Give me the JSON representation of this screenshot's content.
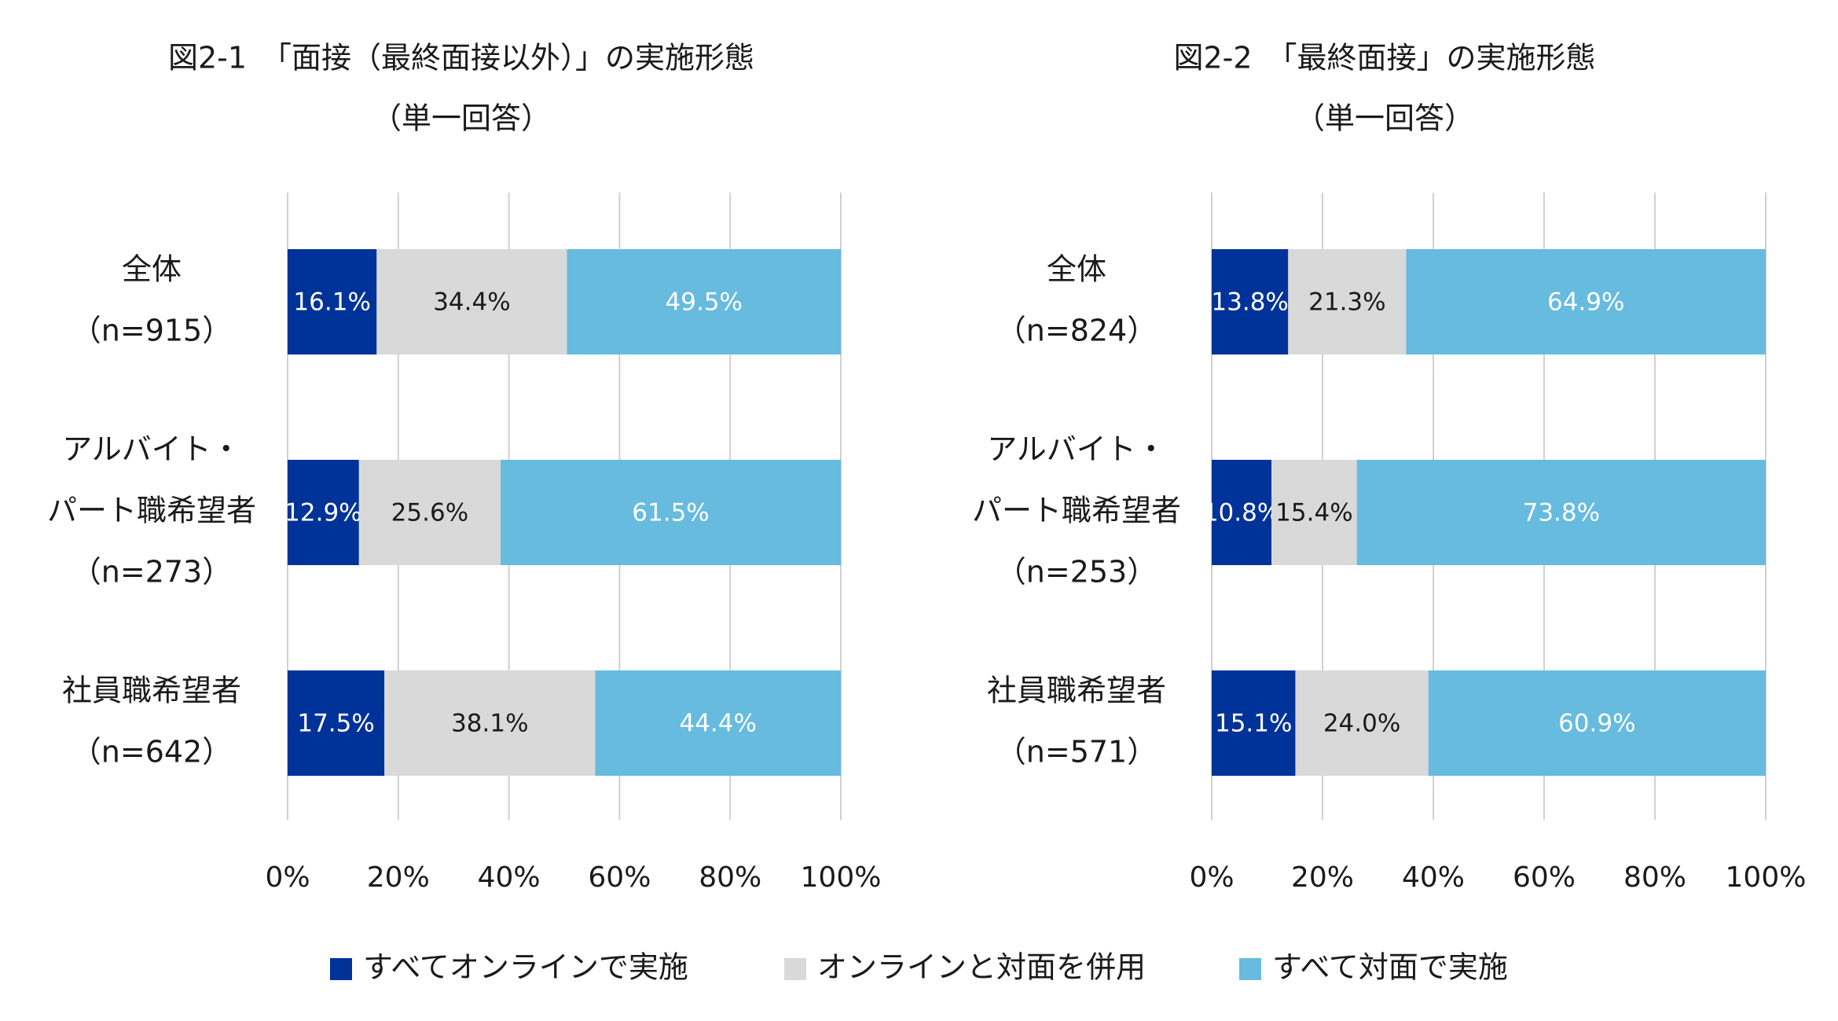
{
  "colors": {
    "online": "#003399",
    "mixed": "#d9d9d9",
    "inperson": "#66bbdf",
    "grid": "#d0d0d0",
    "label_dark": "#1a1a1a",
    "label_light": "#ffffff"
  },
  "legend": [
    {
      "key": "online",
      "label": "すべてオンラインで実施"
    },
    {
      "key": "mixed",
      "label": "オンラインと対面を併用"
    },
    {
      "key": "inperson",
      "label": "すべて対面で実施"
    }
  ],
  "chart_data": [
    {
      "type": "bar",
      "stacked": true,
      "orientation": "horizontal",
      "title_line1": "図2-1　「面接（最終面接以外）」の実施形態",
      "title_line2": "（単一回答）",
      "categories": [
        [
          "全体",
          "（n=915）"
        ],
        [
          "アルバイト・",
          "パート職希望者",
          "（n=273）"
        ],
        [
          "社員職希望者",
          "（n=642）"
        ]
      ],
      "series": [
        {
          "name": "すべてオンラインで実施",
          "key": "online",
          "values": [
            16.1,
            12.9,
            17.5
          ],
          "labels": [
            "16.1%",
            "12.9%",
            "17.5%"
          ]
        },
        {
          "name": "オンラインと対面を併用",
          "key": "mixed",
          "values": [
            34.4,
            25.6,
            38.1
          ],
          "labels": [
            "34.4%",
            "25.6%",
            "38.1%"
          ]
        },
        {
          "name": "すべて対面で実施",
          "key": "inperson",
          "values": [
            49.5,
            61.5,
            44.4
          ],
          "labels": [
            "49.5%",
            "61.5%",
            "44.4%"
          ]
        }
      ],
      "xlim": [
        0,
        100
      ],
      "xticks": [
        "0%",
        "20%",
        "40%",
        "60%",
        "80%",
        "100%"
      ],
      "grid": true
    },
    {
      "type": "bar",
      "stacked": true,
      "orientation": "horizontal",
      "title_line1": "図2-2　「最終面接」の実施形態",
      "title_line2": "（単一回答）",
      "categories": [
        [
          "全体",
          "（n=824）"
        ],
        [
          "アルバイト・",
          "パート職希望者",
          "（n=253）"
        ],
        [
          "社員職希望者",
          "（n=571）"
        ]
      ],
      "series": [
        {
          "name": "すべてオンラインで実施",
          "key": "online",
          "values": [
            13.8,
            10.8,
            15.1
          ],
          "labels": [
            "13.8%",
            "10.8%",
            "15.1%"
          ]
        },
        {
          "name": "オンラインと対面を併用",
          "key": "mixed",
          "values": [
            21.3,
            15.4,
            24.0
          ],
          "labels": [
            "21.3%",
            "15.4%",
            "24.0%"
          ]
        },
        {
          "name": "すべて対面で実施",
          "key": "inperson",
          "values": [
            64.9,
            73.8,
            60.9
          ],
          "labels": [
            "64.9%",
            "73.8%",
            "60.9%"
          ]
        }
      ],
      "xlim": [
        0,
        100
      ],
      "xticks": [
        "0%",
        "20%",
        "40%",
        "60%",
        "80%",
        "100%"
      ],
      "grid": true
    }
  ]
}
